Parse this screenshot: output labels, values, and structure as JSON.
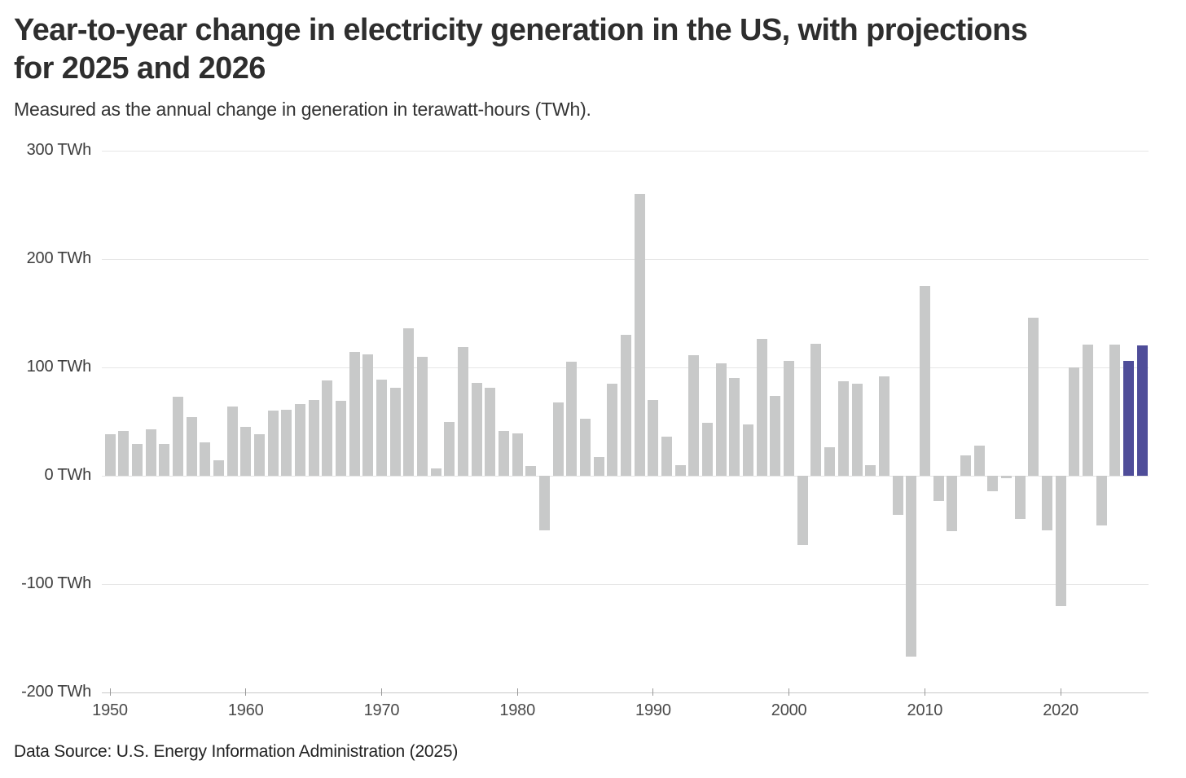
{
  "header": {
    "title_line1": "Year-to-year change in electricity generation in the US, with projections",
    "title_line2": "for 2025 and 2026",
    "subtitle": "Measured as the annual change in generation in terawatt-hours (TWh)."
  },
  "footer": {
    "source": "Data Source: U.S. Energy Information Administration (2025)"
  },
  "colors": {
    "bar": "#c8c9c9",
    "projection_bar": "#4f4d99",
    "gridline": "#e6e6e6",
    "axis_line": "#c9c9c9",
    "axis_tick": "#999999"
  },
  "chart_data": {
    "type": "bar",
    "title": "Year-to-year change in electricity generation in the US, with projections for 2025 and 2026",
    "subtitle": "Measured as the annual change in generation in terawatt-hours (TWh).",
    "xlabel": "",
    "ylabel": "TWh",
    "ylim": [
      -200,
      300
    ],
    "grid": "horizontal",
    "legend_position": "none",
    "ytick_values": [
      300,
      200,
      100,
      0,
      -100,
      -200
    ],
    "ytick_labels": [
      "300 TWh",
      "200 TWh",
      "100 TWh",
      "0 TWh",
      "-100 TWh",
      "-200 TWh"
    ],
    "xtick_years": [
      1950,
      1960,
      1970,
      1980,
      1990,
      2000,
      2010,
      2020
    ],
    "years": [
      1950,
      1951,
      1952,
      1953,
      1954,
      1955,
      1956,
      1957,
      1958,
      1959,
      1960,
      1961,
      1962,
      1963,
      1964,
      1965,
      1966,
      1967,
      1968,
      1969,
      1970,
      1971,
      1972,
      1973,
      1974,
      1975,
      1976,
      1977,
      1978,
      1979,
      1980,
      1981,
      1982,
      1983,
      1984,
      1985,
      1986,
      1987,
      1988,
      1989,
      1990,
      1991,
      1992,
      1993,
      1994,
      1995,
      1996,
      1997,
      1998,
      1999,
      2000,
      2001,
      2002,
      2003,
      2004,
      2005,
      2006,
      2007,
      2008,
      2009,
      2010,
      2011,
      2012,
      2013,
      2014,
      2015,
      2016,
      2017,
      2018,
      2019,
      2020,
      2021,
      2022,
      2023,
      2024,
      2025,
      2026
    ],
    "values": [
      38,
      41,
      29,
      43,
      29,
      73,
      54,
      31,
      14,
      64,
      45,
      38,
      60,
      61,
      66,
      70,
      88,
      69,
      114,
      112,
      89,
      81,
      136,
      110,
      7,
      50,
      119,
      86,
      81,
      41,
      39,
      9,
      -50,
      68,
      105,
      53,
      17,
      85,
      130,
      260,
      70,
      36,
      10,
      111,
      49,
      104,
      90,
      47,
      126,
      74,
      106,
      -64,
      122,
      26,
      87,
      85,
      10,
      92,
      -36,
      -167,
      175,
      -23,
      -51,
      19,
      28,
      -14,
      -2,
      -40,
      146,
      -50,
      -120,
      100,
      121,
      -46,
      121,
      106,
      120
    ],
    "projection_years": [
      2025,
      2026
    ],
    "series_note": "Gray bars are historical values; purple bars are projections for 2025 and 2026."
  }
}
